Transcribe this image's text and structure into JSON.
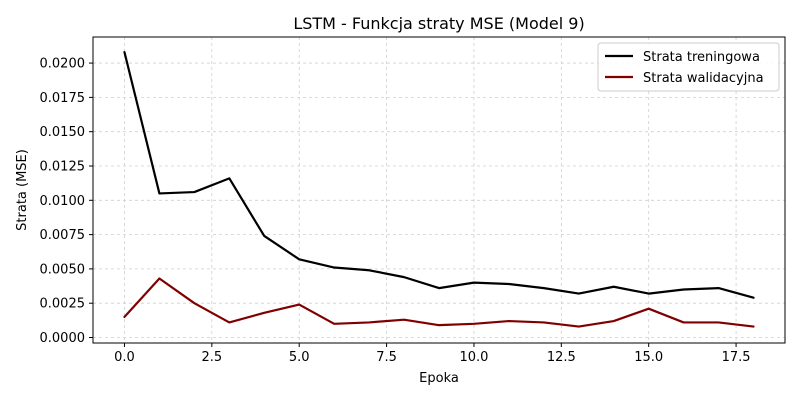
{
  "chart_data": {
    "type": "line",
    "title": "LSTM - Funkcja straty MSE (Model 9)",
    "xlabel": "Epoka",
    "ylabel": "Strata (MSE)",
    "xlim": [
      -0.9,
      18.9
    ],
    "ylim": [
      -0.0004,
      0.0219
    ],
    "xticks": [
      0.0,
      2.5,
      5.0,
      7.5,
      10.0,
      12.5,
      15.0,
      17.5
    ],
    "xtick_labels": [
      "0.0",
      "2.5",
      "5.0",
      "7.5",
      "10.0",
      "12.5",
      "15.0",
      "17.5"
    ],
    "yticks": [
      0.0,
      0.0025,
      0.005,
      0.0075,
      0.01,
      0.0125,
      0.015,
      0.0175,
      0.02
    ],
    "ytick_labels": [
      "0.0000",
      "0.0025",
      "0.0050",
      "0.0075",
      "0.0100",
      "0.0125",
      "0.0150",
      "0.0175",
      "0.0200"
    ],
    "grid": true,
    "legend_position": "top-right",
    "x": [
      0,
      1,
      2,
      3,
      4,
      5,
      6,
      7,
      8,
      9,
      10,
      11,
      12,
      13,
      14,
      15,
      16,
      17,
      18
    ],
    "series": [
      {
        "name": "Strata treningowa",
        "color": "#000000",
        "values": [
          0.0208,
          0.0105,
          0.0106,
          0.0116,
          0.0074,
          0.0057,
          0.0051,
          0.0049,
          0.0044,
          0.0036,
          0.004,
          0.0039,
          0.0036,
          0.0032,
          0.0037,
          0.0032,
          0.0035,
          0.0036,
          0.0029
        ]
      },
      {
        "name": "Strata walidacyjna",
        "color": "#800000",
        "values": [
          0.0015,
          0.0043,
          0.0025,
          0.0011,
          0.0018,
          0.0024,
          0.001,
          0.0011,
          0.0013,
          0.0009,
          0.001,
          0.0012,
          0.0011,
          0.0008,
          0.0012,
          0.0021,
          0.0011,
          0.0011,
          0.0008
        ]
      }
    ]
  }
}
